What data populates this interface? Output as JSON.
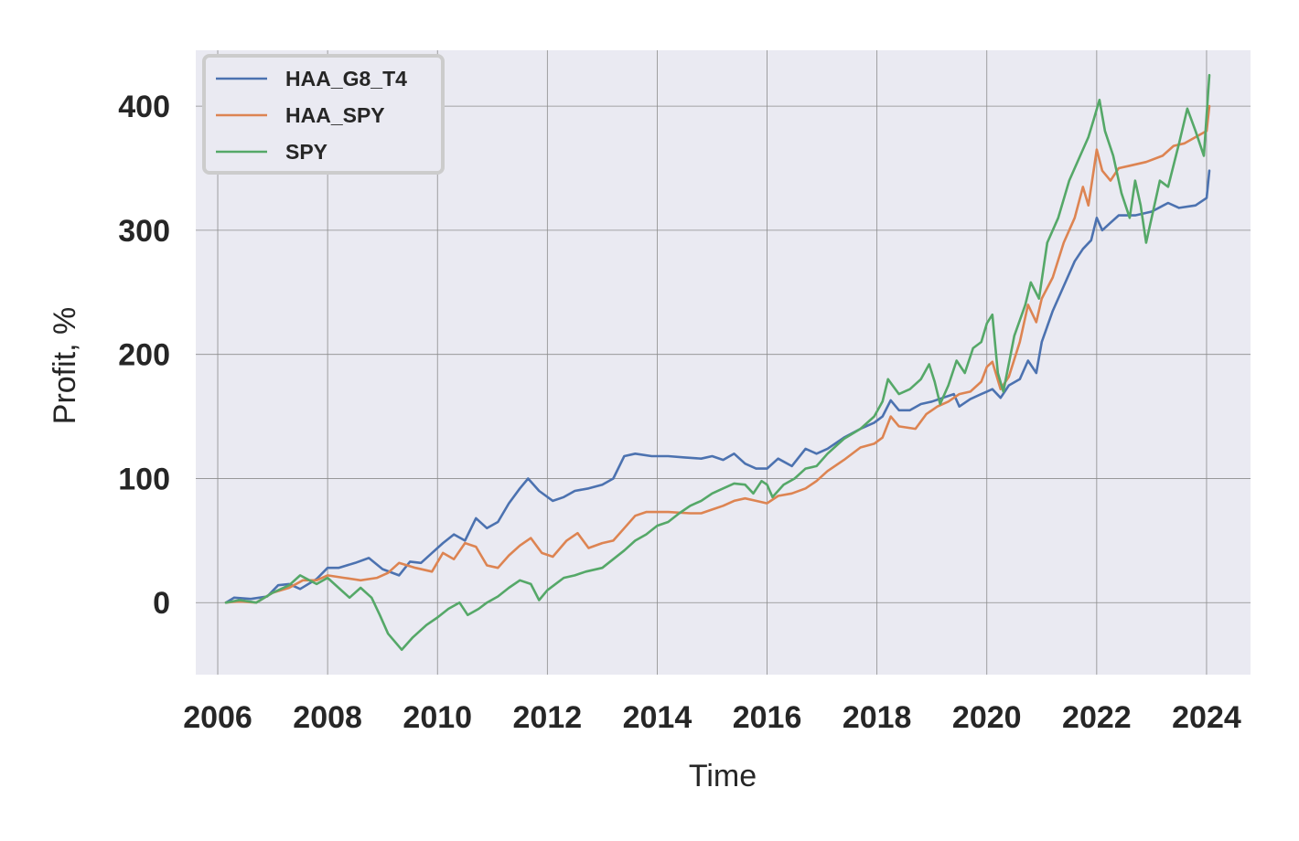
{
  "chart_data": {
    "type": "line",
    "xlabel": "Time",
    "ylabel": "Profit, %",
    "xlim": [
      2005.6,
      2024.8
    ],
    "ylim": [
      -58,
      445
    ],
    "x_ticks": [
      2006,
      2008,
      2010,
      2012,
      2014,
      2016,
      2018,
      2020,
      2022,
      2024
    ],
    "y_ticks": [
      0,
      100,
      200,
      300,
      400
    ],
    "grid": true,
    "legend_position": "top-left",
    "series": [
      {
        "name": "HAA_G8_T4",
        "color": "#4c72b0",
        "points": [
          [
            2006.15,
            0
          ],
          [
            2006.3,
            4
          ],
          [
            2006.6,
            3
          ],
          [
            2006.9,
            5
          ],
          [
            2007.1,
            14
          ],
          [
            2007.3,
            15
          ],
          [
            2007.5,
            11
          ],
          [
            2007.8,
            19
          ],
          [
            2008.0,
            28
          ],
          [
            2008.2,
            28
          ],
          [
            2008.5,
            32
          ],
          [
            2008.75,
            36
          ],
          [
            2009.0,
            27
          ],
          [
            2009.3,
            22
          ],
          [
            2009.5,
            33
          ],
          [
            2009.7,
            32
          ],
          [
            2009.9,
            40
          ],
          [
            2010.1,
            48
          ],
          [
            2010.3,
            55
          ],
          [
            2010.5,
            50
          ],
          [
            2010.7,
            68
          ],
          [
            2010.9,
            60
          ],
          [
            2011.1,
            65
          ],
          [
            2011.3,
            80
          ],
          [
            2011.5,
            92
          ],
          [
            2011.65,
            100
          ],
          [
            2011.85,
            90
          ],
          [
            2012.1,
            82
          ],
          [
            2012.3,
            85
          ],
          [
            2012.5,
            90
          ],
          [
            2012.75,
            92
          ],
          [
            2013.0,
            95
          ],
          [
            2013.2,
            100
          ],
          [
            2013.4,
            118
          ],
          [
            2013.6,
            120
          ],
          [
            2013.9,
            118
          ],
          [
            2014.2,
            118
          ],
          [
            2014.5,
            117
          ],
          [
            2014.8,
            116
          ],
          [
            2015.0,
            118
          ],
          [
            2015.2,
            115
          ],
          [
            2015.4,
            120
          ],
          [
            2015.6,
            112
          ],
          [
            2015.8,
            108
          ],
          [
            2016.0,
            108
          ],
          [
            2016.2,
            116
          ],
          [
            2016.45,
            110
          ],
          [
            2016.7,
            124
          ],
          [
            2016.9,
            120
          ],
          [
            2017.1,
            124
          ],
          [
            2017.4,
            133
          ],
          [
            2017.7,
            140
          ],
          [
            2017.95,
            145
          ],
          [
            2018.1,
            150
          ],
          [
            2018.25,
            163
          ],
          [
            2018.4,
            155
          ],
          [
            2018.6,
            155
          ],
          [
            2018.8,
            160
          ],
          [
            2019.0,
            162
          ],
          [
            2019.2,
            165
          ],
          [
            2019.4,
            168
          ],
          [
            2019.5,
            158
          ],
          [
            2019.7,
            164
          ],
          [
            2019.9,
            168
          ],
          [
            2020.0,
            170
          ],
          [
            2020.1,
            172
          ],
          [
            2020.25,
            165
          ],
          [
            2020.4,
            175
          ],
          [
            2020.6,
            180
          ],
          [
            2020.75,
            195
          ],
          [
            2020.9,
            185
          ],
          [
            2021.0,
            210
          ],
          [
            2021.2,
            235
          ],
          [
            2021.4,
            255
          ],
          [
            2021.6,
            275
          ],
          [
            2021.75,
            285
          ],
          [
            2021.9,
            292
          ],
          [
            2022.0,
            310
          ],
          [
            2022.1,
            300
          ],
          [
            2022.25,
            306
          ],
          [
            2022.4,
            312
          ],
          [
            2022.7,
            312
          ],
          [
            2023.0,
            315
          ],
          [
            2023.3,
            322
          ],
          [
            2023.5,
            318
          ],
          [
            2023.8,
            320
          ],
          [
            2024.0,
            326
          ],
          [
            2024.05,
            348
          ]
        ]
      },
      {
        "name": "HAA_SPY",
        "color": "#dd8452",
        "points": [
          [
            2006.15,
            0
          ],
          [
            2006.4,
            1
          ],
          [
            2006.7,
            0
          ],
          [
            2007.0,
            8
          ],
          [
            2007.3,
            12
          ],
          [
            2007.55,
            18
          ],
          [
            2007.8,
            18
          ],
          [
            2008.0,
            22
          ],
          [
            2008.3,
            20
          ],
          [
            2008.6,
            18
          ],
          [
            2008.9,
            20
          ],
          [
            2009.1,
            24
          ],
          [
            2009.3,
            32
          ],
          [
            2009.6,
            28
          ],
          [
            2009.9,
            25
          ],
          [
            2010.1,
            40
          ],
          [
            2010.3,
            35
          ],
          [
            2010.5,
            48
          ],
          [
            2010.7,
            45
          ],
          [
            2010.9,
            30
          ],
          [
            2011.1,
            28
          ],
          [
            2011.3,
            38
          ],
          [
            2011.5,
            46
          ],
          [
            2011.7,
            52
          ],
          [
            2011.9,
            40
          ],
          [
            2012.1,
            37
          ],
          [
            2012.35,
            50
          ],
          [
            2012.55,
            56
          ],
          [
            2012.75,
            44
          ],
          [
            2013.0,
            48
          ],
          [
            2013.2,
            50
          ],
          [
            2013.4,
            60
          ],
          [
            2013.6,
            70
          ],
          [
            2013.8,
            73
          ],
          [
            2014.2,
            73
          ],
          [
            2014.6,
            72
          ],
          [
            2014.8,
            72
          ],
          [
            2015.0,
            75
          ],
          [
            2015.2,
            78
          ],
          [
            2015.4,
            82
          ],
          [
            2015.6,
            84
          ],
          [
            2015.8,
            82
          ],
          [
            2016.0,
            80
          ],
          [
            2016.2,
            86
          ],
          [
            2016.45,
            88
          ],
          [
            2016.7,
            92
          ],
          [
            2016.9,
            98
          ],
          [
            2017.1,
            106
          ],
          [
            2017.4,
            115
          ],
          [
            2017.7,
            125
          ],
          [
            2017.95,
            128
          ],
          [
            2018.1,
            133
          ],
          [
            2018.25,
            150
          ],
          [
            2018.4,
            142
          ],
          [
            2018.7,
            140
          ],
          [
            2018.9,
            152
          ],
          [
            2019.1,
            158
          ],
          [
            2019.3,
            162
          ],
          [
            2019.5,
            168
          ],
          [
            2019.7,
            170
          ],
          [
            2019.9,
            178
          ],
          [
            2020.0,
            190
          ],
          [
            2020.1,
            194
          ],
          [
            2020.25,
            172
          ],
          [
            2020.4,
            182
          ],
          [
            2020.6,
            210
          ],
          [
            2020.75,
            240
          ],
          [
            2020.9,
            226
          ],
          [
            2021.0,
            245
          ],
          [
            2021.2,
            262
          ],
          [
            2021.4,
            290
          ],
          [
            2021.6,
            310
          ],
          [
            2021.75,
            335
          ],
          [
            2021.85,
            320
          ],
          [
            2021.95,
            350
          ],
          [
            2022.0,
            365
          ],
          [
            2022.1,
            348
          ],
          [
            2022.25,
            340
          ],
          [
            2022.4,
            350
          ],
          [
            2022.6,
            352
          ],
          [
            2022.9,
            355
          ],
          [
            2023.2,
            360
          ],
          [
            2023.4,
            368
          ],
          [
            2023.6,
            370
          ],
          [
            2023.8,
            375
          ],
          [
            2024.0,
            380
          ],
          [
            2024.05,
            400
          ]
        ]
      },
      {
        "name": "SPY",
        "color": "#55a868",
        "points": [
          [
            2006.15,
            0
          ],
          [
            2006.4,
            2
          ],
          [
            2006.7,
            0
          ],
          [
            2007.0,
            8
          ],
          [
            2007.3,
            14
          ],
          [
            2007.5,
            22
          ],
          [
            2007.8,
            15
          ],
          [
            2008.0,
            20
          ],
          [
            2008.2,
            12
          ],
          [
            2008.4,
            4
          ],
          [
            2008.6,
            12
          ],
          [
            2008.8,
            4
          ],
          [
            2008.95,
            -10
          ],
          [
            2009.1,
            -25
          ],
          [
            2009.35,
            -38
          ],
          [
            2009.55,
            -28
          ],
          [
            2009.8,
            -18
          ],
          [
            2010.0,
            -12
          ],
          [
            2010.2,
            -5
          ],
          [
            2010.4,
            0
          ],
          [
            2010.55,
            -10
          ],
          [
            2010.75,
            -5
          ],
          [
            2010.9,
            0
          ],
          [
            2011.1,
            5
          ],
          [
            2011.3,
            12
          ],
          [
            2011.5,
            18
          ],
          [
            2011.7,
            15
          ],
          [
            2011.85,
            2
          ],
          [
            2012.0,
            10
          ],
          [
            2012.3,
            20
          ],
          [
            2012.5,
            22
          ],
          [
            2012.7,
            25
          ],
          [
            2013.0,
            28
          ],
          [
            2013.2,
            35
          ],
          [
            2013.4,
            42
          ],
          [
            2013.6,
            50
          ],
          [
            2013.8,
            55
          ],
          [
            2014.0,
            62
          ],
          [
            2014.2,
            65
          ],
          [
            2014.4,
            72
          ],
          [
            2014.6,
            78
          ],
          [
            2014.8,
            82
          ],
          [
            2015.0,
            88
          ],
          [
            2015.2,
            92
          ],
          [
            2015.4,
            96
          ],
          [
            2015.6,
            95
          ],
          [
            2015.75,
            88
          ],
          [
            2015.9,
            98
          ],
          [
            2016.0,
            95
          ],
          [
            2016.1,
            85
          ],
          [
            2016.3,
            95
          ],
          [
            2016.5,
            100
          ],
          [
            2016.7,
            108
          ],
          [
            2016.9,
            110
          ],
          [
            2017.1,
            120
          ],
          [
            2017.4,
            132
          ],
          [
            2017.7,
            140
          ],
          [
            2017.95,
            150
          ],
          [
            2018.1,
            162
          ],
          [
            2018.2,
            180
          ],
          [
            2018.4,
            168
          ],
          [
            2018.6,
            172
          ],
          [
            2018.8,
            180
          ],
          [
            2018.95,
            192
          ],
          [
            2019.05,
            178
          ],
          [
            2019.15,
            160
          ],
          [
            2019.3,
            175
          ],
          [
            2019.45,
            195
          ],
          [
            2019.6,
            185
          ],
          [
            2019.75,
            205
          ],
          [
            2019.9,
            210
          ],
          [
            2020.0,
            225
          ],
          [
            2020.1,
            232
          ],
          [
            2020.2,
            185
          ],
          [
            2020.3,
            170
          ],
          [
            2020.5,
            215
          ],
          [
            2020.7,
            240
          ],
          [
            2020.8,
            258
          ],
          [
            2020.95,
            245
          ],
          [
            2021.1,
            290
          ],
          [
            2021.3,
            310
          ],
          [
            2021.5,
            340
          ],
          [
            2021.7,
            360
          ],
          [
            2021.85,
            375
          ],
          [
            2021.95,
            390
          ],
          [
            2022.05,
            405
          ],
          [
            2022.15,
            380
          ],
          [
            2022.3,
            360
          ],
          [
            2022.45,
            330
          ],
          [
            2022.6,
            310
          ],
          [
            2022.7,
            340
          ],
          [
            2022.8,
            320
          ],
          [
            2022.9,
            290
          ],
          [
            2023.0,
            310
          ],
          [
            2023.15,
            340
          ],
          [
            2023.3,
            335
          ],
          [
            2023.5,
            370
          ],
          [
            2023.65,
            398
          ],
          [
            2023.8,
            380
          ],
          [
            2023.95,
            360
          ],
          [
            2024.05,
            425
          ]
        ]
      }
    ]
  }
}
